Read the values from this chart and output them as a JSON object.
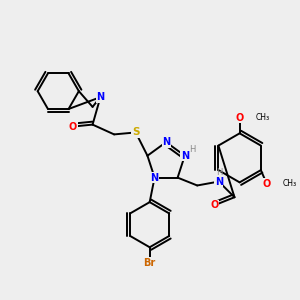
{
  "background_color": "#eeeeee",
  "fig_width": 3.0,
  "fig_height": 3.0,
  "dpi": 100,
  "atom_colors": {
    "C": "#000000",
    "N": "#0000ff",
    "O": "#ff0000",
    "S": "#ccaa00",
    "Br": "#cc6600",
    "H": "#888888"
  },
  "bond_color": "#000000",
  "bond_width": 1.4
}
